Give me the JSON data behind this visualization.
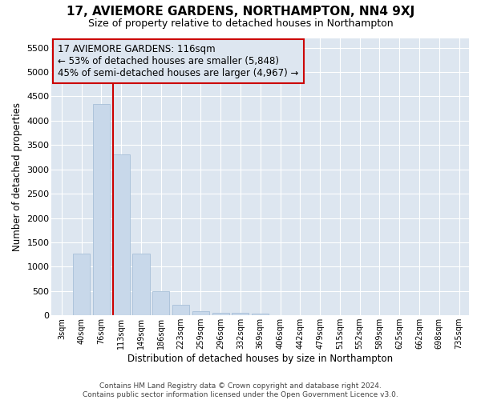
{
  "title": "17, AVIEMORE GARDENS, NORTHAMPTON, NN4 9XJ",
  "subtitle": "Size of property relative to detached houses in Northampton",
  "xlabel": "Distribution of detached houses by size in Northampton",
  "ylabel": "Number of detached properties",
  "bar_color": "#c8d8ea",
  "bar_edge_color": "#a8c0d8",
  "plot_bg_color": "#dde6f0",
  "fig_bg_color": "#ffffff",
  "grid_color": "#ffffff",
  "vline_color": "#cc0000",
  "vline_x_index": 3,
  "annotation_line1": "17 AVIEMORE GARDENS: 116sqm",
  "annotation_line2": "← 53% of detached houses are smaller (5,848)",
  "annotation_line3": "45% of semi-detached houses are larger (4,967) →",
  "annotation_box_color": "#cc0000",
  "categories": [
    "3sqm",
    "40sqm",
    "76sqm",
    "113sqm",
    "149sqm",
    "186sqm",
    "223sqm",
    "259sqm",
    "296sqm",
    "332sqm",
    "369sqm",
    "406sqm",
    "442sqm",
    "479sqm",
    "515sqm",
    "552sqm",
    "589sqm",
    "625sqm",
    "662sqm",
    "698sqm",
    "735sqm"
  ],
  "values": [
    0,
    1270,
    4350,
    3300,
    1270,
    490,
    220,
    90,
    60,
    45,
    35,
    0,
    0,
    0,
    0,
    0,
    0,
    0,
    0,
    0,
    0
  ],
  "ylim": [
    0,
    5700
  ],
  "yticks": [
    0,
    500,
    1000,
    1500,
    2000,
    2500,
    3000,
    3500,
    4000,
    4500,
    5000,
    5500
  ],
  "figsize": [
    6.0,
    5.0
  ],
  "dpi": 100,
  "footer": "Contains HM Land Registry data © Crown copyright and database right 2024.\nContains public sector information licensed under the Open Government Licence v3.0."
}
